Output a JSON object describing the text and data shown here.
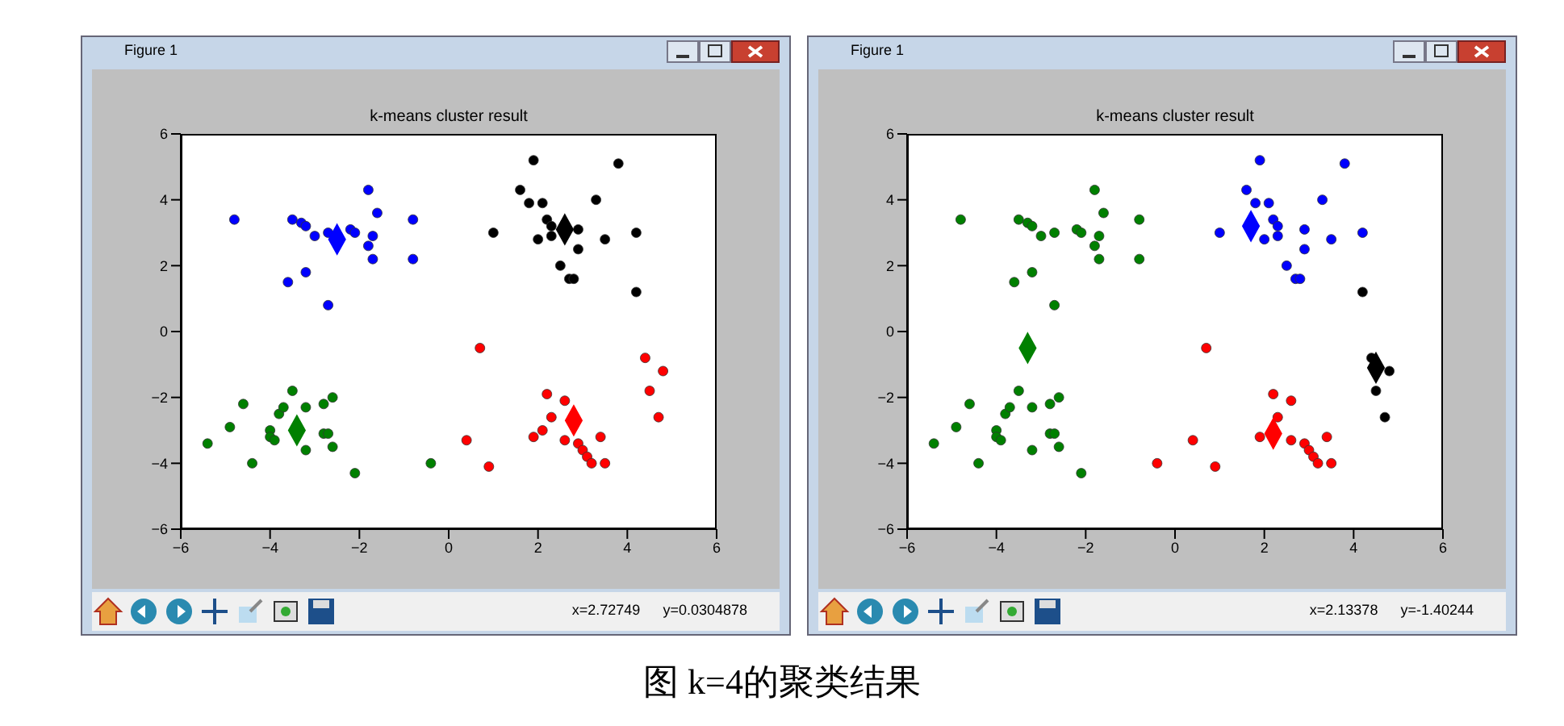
{
  "chart_data": [
    {
      "type": "scatter",
      "title": "k-means cluster result",
      "xlim": [
        -6,
        6
      ],
      "ylim": [
        -6,
        6
      ],
      "xticks": [
        -6,
        -4,
        -2,
        0,
        2,
        4,
        6
      ],
      "yticks": [
        -6,
        -4,
        -2,
        0,
        2,
        4,
        6
      ],
      "marker": "circle",
      "series": [
        {
          "color": "#0000ff",
          "x": [
            -4.8,
            -3.5,
            -3.3,
            -3.2,
            -3.0,
            -3.2,
            -3.6,
            -2.7,
            -2.7,
            -2.2,
            -2.1,
            -1.8,
            -1.6,
            -1.7,
            -1.8,
            -1.7,
            -0.8,
            -0.8
          ],
          "values": [
            3.4,
            3.4,
            3.3,
            3.2,
            2.9,
            1.8,
            1.5,
            0.8,
            3.0,
            3.1,
            3.0,
            4.3,
            3.6,
            2.9,
            2.6,
            2.2,
            3.4,
            2.2
          ]
        },
        {
          "color": "#000000",
          "x": [
            1.0,
            1.6,
            1.8,
            1.9,
            2.1,
            2.0,
            2.2,
            2.3,
            2.3,
            2.5,
            2.7,
            2.8,
            2.9,
            2.9,
            3.3,
            3.5,
            3.8,
            4.2,
            4.2
          ],
          "values": [
            3.0,
            4.3,
            3.9,
            5.2,
            3.9,
            2.8,
            3.4,
            3.2,
            2.9,
            2.0,
            1.6,
            1.6,
            3.1,
            2.5,
            4.0,
            2.8,
            5.1,
            3.0,
            1.2
          ]
        },
        {
          "color": "#008000",
          "x": [
            -5.4,
            -4.9,
            -4.6,
            -4.4,
            -4.0,
            -4.0,
            -3.9,
            -3.8,
            -3.7,
            -3.5,
            -3.2,
            -3.2,
            -2.8,
            -2.8,
            -2.7,
            -2.6,
            -2.6,
            -2.1,
            -0.4
          ],
          "values": [
            -3.4,
            -2.9,
            -2.2,
            -4.0,
            -3.0,
            -3.2,
            -3.3,
            -2.5,
            -2.3,
            -1.8,
            -2.3,
            -3.6,
            -2.2,
            -3.1,
            -3.1,
            -2.0,
            -3.5,
            -4.3,
            -4.0
          ]
        },
        {
          "color": "#ff0000",
          "x": [
            0.7,
            0.4,
            0.9,
            1.9,
            2.1,
            2.2,
            2.3,
            2.6,
            2.6,
            2.9,
            3.0,
            3.1,
            3.2,
            3.4,
            3.5,
            4.4,
            4.5,
            4.8,
            4.7
          ],
          "values": [
            -0.5,
            -3.3,
            -4.1,
            -3.2,
            -3.0,
            -1.9,
            -2.6,
            -2.1,
            -3.3,
            -3.4,
            -3.6,
            -3.8,
            -4.0,
            -3.2,
            -4.0,
            -0.8,
            -1.8,
            -1.2,
            -2.6
          ]
        },
        {
          "color": "#0000ff",
          "marker": "diamond",
          "x": [
            -2.5
          ],
          "values": [
            2.8
          ]
        },
        {
          "color": "#000000",
          "marker": "diamond",
          "x": [
            2.6
          ],
          "values": [
            3.1
          ]
        },
        {
          "color": "#008000",
          "marker": "diamond",
          "x": [
            -3.4
          ],
          "values": [
            -3.0
          ]
        },
        {
          "color": "#ff0000",
          "marker": "diamond",
          "x": [
            2.8
          ],
          "values": [
            -2.7
          ]
        }
      ],
      "annotations": [
        "Figure 1",
        "x=2.72749",
        "y=0.0304878",
        "图 k=4的聚类结果"
      ]
    },
    {
      "type": "scatter",
      "title": "k-means cluster result",
      "xlim": [
        -6,
        6
      ],
      "ylim": [
        -6,
        6
      ],
      "xticks": [
        -6,
        -4,
        -2,
        0,
        2,
        4,
        6
      ],
      "yticks": [
        -6,
        -4,
        -2,
        0,
        2,
        4,
        6
      ],
      "marker": "circle",
      "series": [
        {
          "color": "#008000",
          "x": [
            -4.8,
            -3.5,
            -3.3,
            -3.2,
            -3.0,
            -3.2,
            -3.6,
            -2.7,
            -2.7,
            -2.2,
            -2.1,
            -1.8,
            -1.6,
            -1.7,
            -1.8,
            -1.7,
            -0.8,
            -0.8,
            -5.4,
            -4.9,
            -4.6,
            -4.4,
            -4.0,
            -4.0,
            -3.9,
            -3.8,
            -3.7,
            -3.5,
            -3.2,
            -3.2,
            -2.8,
            -2.8,
            -2.7,
            -2.6,
            -2.6,
            -2.1
          ],
          "values": [
            3.4,
            3.4,
            3.3,
            3.2,
            2.9,
            1.8,
            1.5,
            0.8,
            3.0,
            3.1,
            3.0,
            4.3,
            3.6,
            2.9,
            2.6,
            2.2,
            3.4,
            2.2,
            -3.4,
            -2.9,
            -2.2,
            -4.0,
            -3.0,
            -3.2,
            -3.3,
            -2.5,
            -2.3,
            -1.8,
            -2.3,
            -3.6,
            -2.2,
            -3.1,
            -3.1,
            -2.0,
            -3.5,
            -4.3
          ]
        },
        {
          "color": "#0000ff",
          "x": [
            1.0,
            1.6,
            1.8,
            1.9,
            2.1,
            2.0,
            2.2,
            2.3,
            2.3,
            2.5,
            2.7,
            2.8,
            2.9,
            2.9,
            3.3,
            3.5,
            3.8,
            4.2
          ],
          "values": [
            3.0,
            4.3,
            3.9,
            5.2,
            3.9,
            2.8,
            3.4,
            3.2,
            2.9,
            2.0,
            1.6,
            1.6,
            3.1,
            2.5,
            4.0,
            2.8,
            5.1,
            3.0
          ]
        },
        {
          "color": "#ff0000",
          "x": [
            -0.4,
            0.7,
            0.4,
            0.9,
            1.9,
            2.1,
            2.2,
            2.3,
            2.6,
            2.6,
            2.9,
            3.0,
            3.1,
            3.2,
            3.4,
            3.5
          ],
          "values": [
            -4.0,
            -0.5,
            -3.3,
            -4.1,
            -3.2,
            null,
            -1.9,
            -2.6,
            -2.1,
            -3.3,
            -3.4,
            -3.6,
            -3.8,
            -4.0,
            -3.2,
            -4.0
          ]
        },
        {
          "color": "#000000",
          "x": [
            4.2,
            4.4,
            4.5,
            4.8,
            4.7
          ],
          "values": [
            1.2,
            -0.8,
            -1.8,
            -1.2,
            -2.6
          ]
        },
        {
          "color": "#008000",
          "marker": "diamond",
          "x": [
            -3.3
          ],
          "values": [
            -0.5
          ]
        },
        {
          "color": "#0000ff",
          "marker": "diamond",
          "x": [
            1.7
          ],
          "values": [
            3.2
          ]
        },
        {
          "color": "#ff0000",
          "marker": "diamond",
          "x": [
            2.2
          ],
          "values": [
            -3.1
          ]
        },
        {
          "color": "#000000",
          "marker": "diamond",
          "x": [
            4.5
          ],
          "values": [
            -1.1
          ]
        }
      ],
      "annotations": [
        "Figure 1",
        "x=2.13378",
        "y=-1.40244"
      ]
    }
  ]
}
